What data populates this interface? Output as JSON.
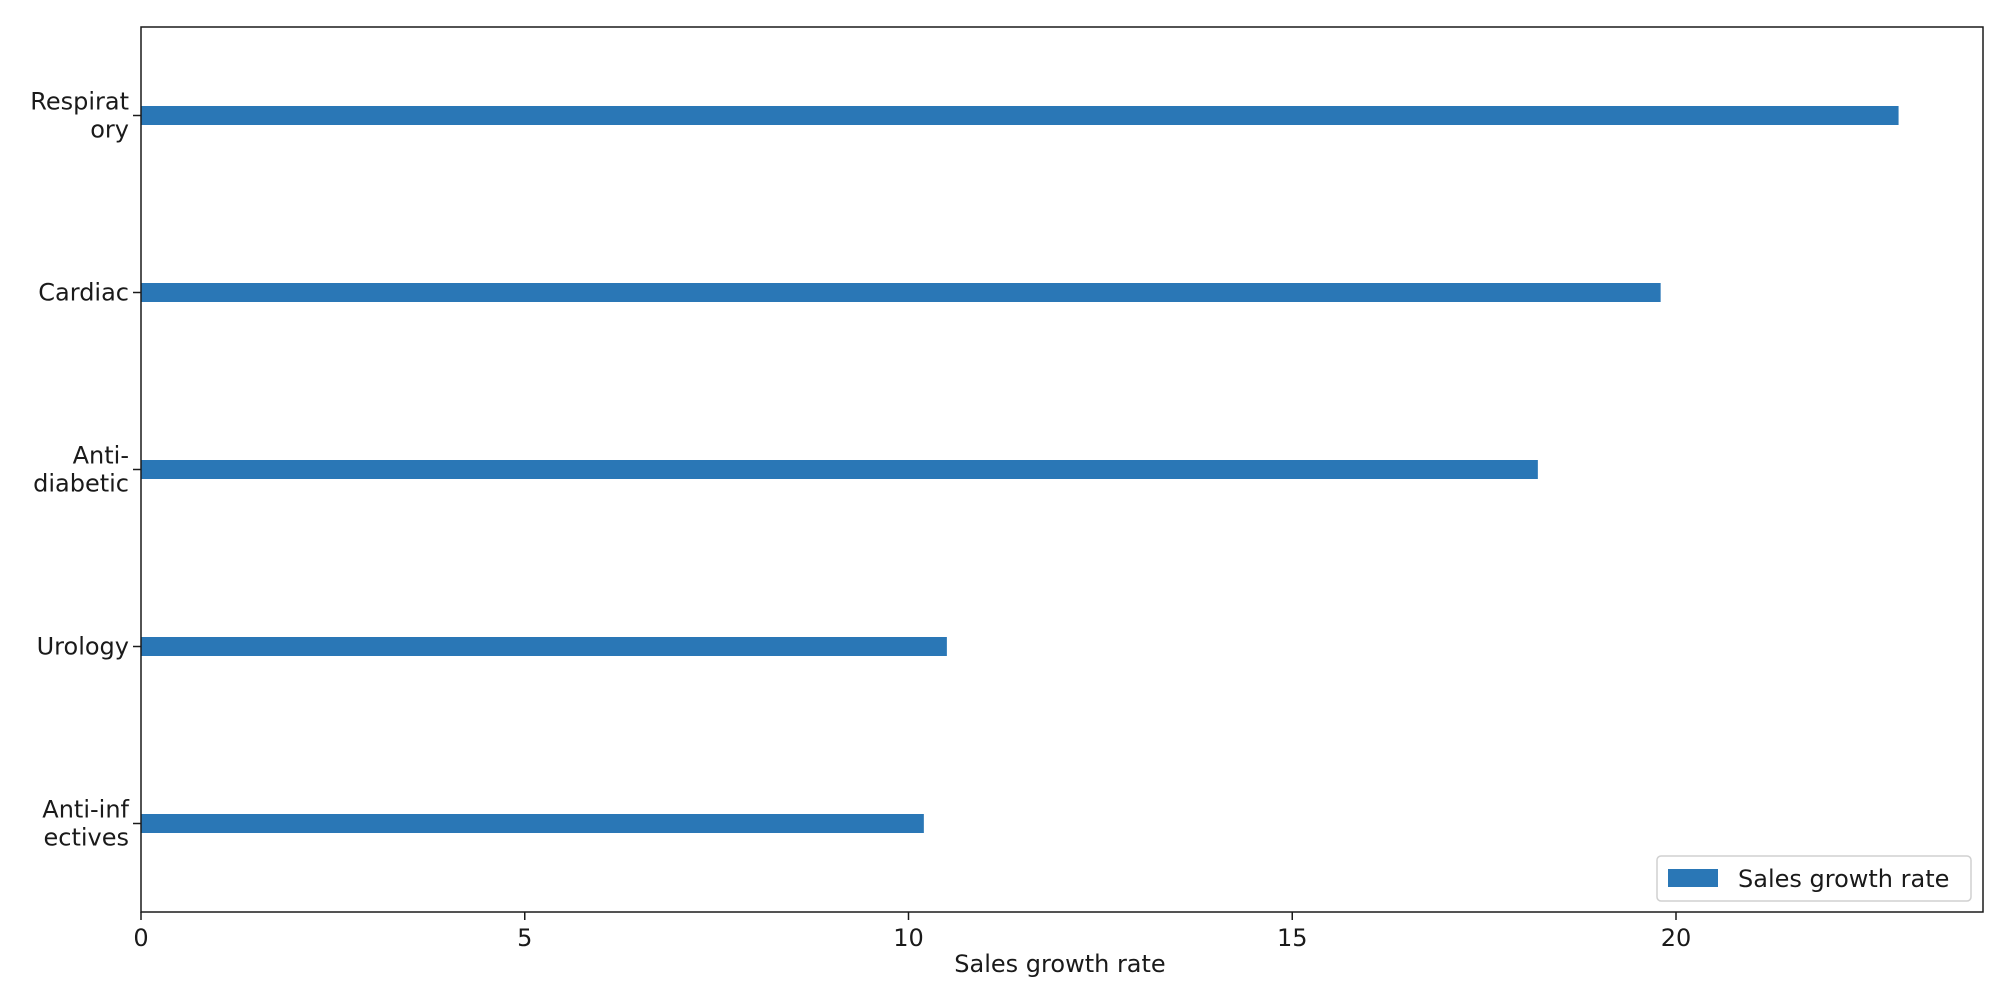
{
  "chart_data": {
    "type": "bar",
    "orientation": "horizontal",
    "categories": [
      "Respiratory",
      "Cardiac",
      "Anti-diabetic",
      "Urology",
      "Anti-infectives"
    ],
    "category_label_lines": [
      [
        "Respirat",
        "ory"
      ],
      [
        "Cardiac"
      ],
      [
        "Anti-",
        "diabetic"
      ],
      [
        "Urology"
      ],
      [
        "Anti-inf",
        "ectives"
      ]
    ],
    "series": [
      {
        "name": "Sales growth rate",
        "values": [
          22.9,
          19.8,
          18.2,
          10.5,
          10.2
        ],
        "color": "#2a77b6"
      }
    ],
    "title": "",
    "xlabel": "Sales growth rate",
    "ylabel": "",
    "xlim": [
      0,
      24
    ],
    "xticks": [
      0,
      5,
      10,
      15,
      20
    ],
    "grid": false,
    "legend_position": "lower-right"
  }
}
